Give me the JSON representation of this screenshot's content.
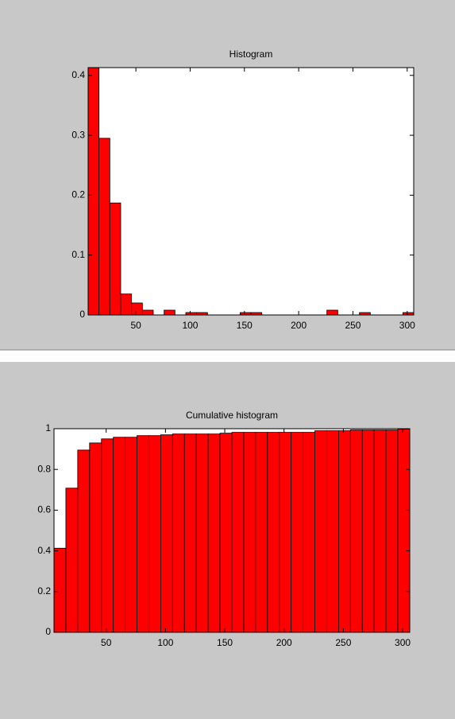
{
  "chart_data": [
    {
      "type": "histogram",
      "title": "Histogram",
      "color": "#ff0000",
      "bins": [
        6,
        16,
        26,
        36,
        46,
        56,
        66,
        76,
        86,
        96,
        106,
        116,
        126,
        136,
        146,
        156,
        166,
        176,
        186,
        196,
        206,
        216,
        226,
        236,
        246,
        256,
        266,
        276,
        286,
        296,
        306
      ],
      "values": [
        0.413,
        0.295,
        0.187,
        0.035,
        0.02,
        0.008,
        0,
        0.008,
        0,
        0.004,
        0.004,
        0,
        0,
        0,
        0.004,
        0.004,
        0,
        0,
        0,
        0,
        0,
        0,
        0.008,
        0,
        0,
        0.004,
        0,
        0,
        0,
        0.004
      ],
      "xlim": [
        6,
        306
      ],
      "xticks": [
        50,
        100,
        150,
        200,
        250,
        300
      ],
      "ylim": [
        0,
        0.413
      ],
      "yticks": [
        0,
        0.1,
        0.2,
        0.3,
        0.4
      ]
    },
    {
      "type": "histogram",
      "title": "Cumulative histogram",
      "color": "#ff0000",
      "bins": [
        6,
        16,
        26,
        36,
        46,
        56,
        66,
        76,
        86,
        96,
        106,
        116,
        126,
        136,
        146,
        156,
        166,
        176,
        186,
        196,
        206,
        216,
        226,
        236,
        246,
        256,
        266,
        276,
        286,
        296,
        306
      ],
      "values": [
        0.413,
        0.708,
        0.895,
        0.93,
        0.95,
        0.958,
        0.958,
        0.966,
        0.966,
        0.97,
        0.974,
        0.974,
        0.974,
        0.974,
        0.978,
        0.982,
        0.982,
        0.982,
        0.982,
        0.982,
        0.982,
        0.982,
        0.99,
        0.99,
        0.99,
        0.994,
        0.994,
        0.994,
        0.994,
        0.998
      ],
      "xlim": [
        6,
        306
      ],
      "xticks": [
        50,
        100,
        150,
        200,
        250,
        300
      ],
      "ylim": [
        0,
        1
      ],
      "yticks": [
        0,
        0.2,
        0.4,
        0.6,
        0.8,
        1
      ]
    }
  ]
}
